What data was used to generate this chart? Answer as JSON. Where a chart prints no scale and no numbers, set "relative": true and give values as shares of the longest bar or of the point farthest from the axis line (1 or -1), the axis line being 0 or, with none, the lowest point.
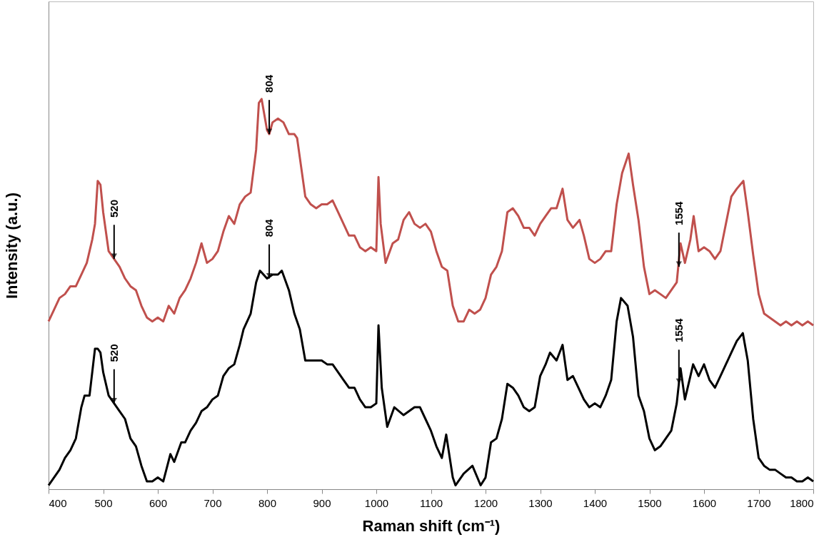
{
  "chart_data": {
    "type": "line",
    "relative": true,
    "xlabel": "Raman shift (cm⁻¹)",
    "ylabel": "Intensity  (a.u.)",
    "xlim": [
      400,
      1800
    ],
    "xticks": [
      400,
      500,
      600,
      700,
      800,
      900,
      1000,
      1100,
      1200,
      1300,
      1400,
      1500,
      1600,
      1700,
      1800
    ],
    "grid": false,
    "marker": "none",
    "line_style": "solid",
    "series": [
      {
        "color": "#c0504d",
        "x": [
          400,
          410,
          420,
          430,
          440,
          450,
          460,
          470,
          480,
          485,
          490,
          495,
          500,
          510,
          520,
          530,
          540,
          550,
          560,
          565,
          570,
          580,
          590,
          600,
          610,
          620,
          630,
          640,
          650,
          660,
          670,
          680,
          690,
          700,
          710,
          720,
          730,
          740,
          750,
          760,
          770,
          780,
          785,
          790,
          800,
          804,
          810,
          820,
          830,
          840,
          850,
          855,
          860,
          870,
          880,
          890,
          900,
          910,
          920,
          930,
          940,
          950,
          960,
          970,
          980,
          990,
          1000,
          1004,
          1008,
          1017,
          1030,
          1040,
          1050,
          1060,
          1070,
          1080,
          1090,
          1100,
          1110,
          1120,
          1130,
          1140,
          1150,
          1160,
          1170,
          1180,
          1190,
          1200,
          1210,
          1220,
          1230,
          1240,
          1250,
          1260,
          1270,
          1280,
          1290,
          1300,
          1310,
          1320,
          1330,
          1341,
          1350,
          1360,
          1372,
          1380,
          1390,
          1400,
          1410,
          1420,
          1430,
          1440,
          1450,
          1462,
          1470,
          1480,
          1490,
          1500,
          1510,
          1520,
          1530,
          1540,
          1550,
          1557,
          1565,
          1575,
          1581,
          1590,
          1600,
          1610,
          1620,
          1630,
          1640,
          1650,
          1660,
          1672,
          1680,
          1690,
          1700,
          1710,
          1720,
          1730,
          1740,
          1750,
          1760,
          1770,
          1780,
          1790,
          1800
        ],
        "values": [
          0.43,
          0.46,
          0.49,
          0.5,
          0.52,
          0.52,
          0.55,
          0.58,
          0.64,
          0.68,
          0.79,
          0.78,
          0.71,
          0.61,
          0.59,
          0.57,
          0.54,
          0.52,
          0.51,
          0.49,
          0.47,
          0.44,
          0.43,
          0.44,
          0.43,
          0.47,
          0.45,
          0.49,
          0.51,
          0.54,
          0.58,
          0.63,
          0.58,
          0.59,
          0.61,
          0.66,
          0.7,
          0.68,
          0.73,
          0.75,
          0.76,
          0.87,
          0.99,
          1.0,
          0.92,
          0.91,
          0.94,
          0.95,
          0.94,
          0.91,
          0.91,
          0.9,
          0.85,
          0.75,
          0.73,
          0.72,
          0.73,
          0.73,
          0.74,
          0.71,
          0.68,
          0.65,
          0.65,
          0.62,
          0.61,
          0.62,
          0.61,
          0.8,
          0.68,
          0.58,
          0.63,
          0.64,
          0.69,
          0.71,
          0.68,
          0.67,
          0.68,
          0.66,
          0.61,
          0.57,
          0.56,
          0.47,
          0.43,
          0.43,
          0.46,
          0.45,
          0.46,
          0.49,
          0.55,
          0.57,
          0.61,
          0.71,
          0.72,
          0.7,
          0.67,
          0.67,
          0.65,
          0.68,
          0.7,
          0.72,
          0.72,
          0.77,
          0.69,
          0.67,
          0.69,
          0.65,
          0.59,
          0.58,
          0.59,
          0.61,
          0.61,
          0.73,
          0.81,
          0.86,
          0.78,
          0.69,
          0.57,
          0.5,
          0.51,
          0.5,
          0.49,
          0.51,
          0.53,
          0.63,
          0.58,
          0.64,
          0.7,
          0.61,
          0.62,
          0.61,
          0.59,
          0.61,
          0.68,
          0.75,
          0.77,
          0.79,
          0.71,
          0.6,
          0.5,
          0.45,
          0.44,
          0.43,
          0.42,
          0.43,
          0.42,
          0.43,
          0.42,
          0.43,
          0.42
        ]
      },
      {
        "color": "#000000",
        "x": [
          400,
          410,
          420,
          430,
          440,
          450,
          460,
          466,
          475,
          480,
          485,
          490,
          495,
          500,
          510,
          520,
          530,
          540,
          550,
          560,
          570,
          580,
          590,
          600,
          610,
          623,
          630,
          643,
          650,
          660,
          670,
          680,
          690,
          700,
          710,
          720,
          730,
          740,
          750,
          757,
          770,
          780,
          787,
          800,
          810,
          820,
          827,
          840,
          850,
          860,
          870,
          880,
          890,
          900,
          910,
          920,
          930,
          940,
          950,
          960,
          970,
          980,
          990,
          1000,
          1004,
          1010,
          1020,
          1033,
          1050,
          1060,
          1070,
          1080,
          1090,
          1100,
          1110,
          1120,
          1128,
          1140,
          1145,
          1160,
          1176,
          1191,
          1200,
          1210,
          1220,
          1230,
          1240,
          1250,
          1260,
          1270,
          1280,
          1290,
          1300,
          1310,
          1318,
          1330,
          1341,
          1350,
          1360,
          1370,
          1380,
          1390,
          1400,
          1410,
          1420,
          1430,
          1440,
          1448,
          1460,
          1470,
          1480,
          1490,
          1500,
          1510,
          1520,
          1530,
          1540,
          1550,
          1557,
          1565,
          1575,
          1580,
          1590,
          1600,
          1610,
          1620,
          1630,
          1640,
          1650,
          1660,
          1671,
          1680,
          1690,
          1700,
          1710,
          1720,
          1730,
          1740,
          1750,
          1760,
          1770,
          1780,
          1790,
          1800
        ],
        "values": [
          0.01,
          0.03,
          0.05,
          0.08,
          0.1,
          0.13,
          0.21,
          0.24,
          0.24,
          0.3,
          0.36,
          0.36,
          0.35,
          0.3,
          0.24,
          0.22,
          0.2,
          0.18,
          0.13,
          0.11,
          0.06,
          0.02,
          0.02,
          0.03,
          0.02,
          0.09,
          0.07,
          0.12,
          0.12,
          0.15,
          0.17,
          0.2,
          0.21,
          0.23,
          0.24,
          0.29,
          0.31,
          0.32,
          0.37,
          0.41,
          0.45,
          0.53,
          0.56,
          0.54,
          0.55,
          0.55,
          0.56,
          0.51,
          0.45,
          0.41,
          0.33,
          0.33,
          0.33,
          0.33,
          0.32,
          0.32,
          0.3,
          0.28,
          0.26,
          0.26,
          0.23,
          0.21,
          0.21,
          0.22,
          0.42,
          0.26,
          0.16,
          0.21,
          0.19,
          0.2,
          0.21,
          0.21,
          0.18,
          0.15,
          0.11,
          0.08,
          0.14,
          0.03,
          0.01,
          0.04,
          0.06,
          0.01,
          0.03,
          0.12,
          0.13,
          0.18,
          0.27,
          0.26,
          0.24,
          0.21,
          0.2,
          0.21,
          0.29,
          0.32,
          0.35,
          0.33,
          0.37,
          0.28,
          0.29,
          0.26,
          0.23,
          0.21,
          0.22,
          0.21,
          0.24,
          0.28,
          0.43,
          0.49,
          0.47,
          0.39,
          0.24,
          0.2,
          0.13,
          0.1,
          0.11,
          0.13,
          0.15,
          0.22,
          0.31,
          0.23,
          0.29,
          0.32,
          0.29,
          0.32,
          0.28,
          0.26,
          0.29,
          0.32,
          0.35,
          0.38,
          0.4,
          0.33,
          0.18,
          0.08,
          0.06,
          0.05,
          0.05,
          0.04,
          0.03,
          0.03,
          0.02,
          0.02,
          0.03,
          0.02
        ]
      }
    ],
    "annotations": [
      {
        "text": "520",
        "x": 520,
        "y": 0.59
      },
      {
        "text": "804",
        "x": 804,
        "y": 0.91
      },
      {
        "text": "1554",
        "x": 1554,
        "y": 0.57
      },
      {
        "text": "520",
        "x": 520,
        "y": 0.22
      },
      {
        "text": "804",
        "x": 804,
        "y": 0.54
      },
      {
        "text": "1554",
        "x": 1554,
        "y": 0.27
      }
    ]
  }
}
